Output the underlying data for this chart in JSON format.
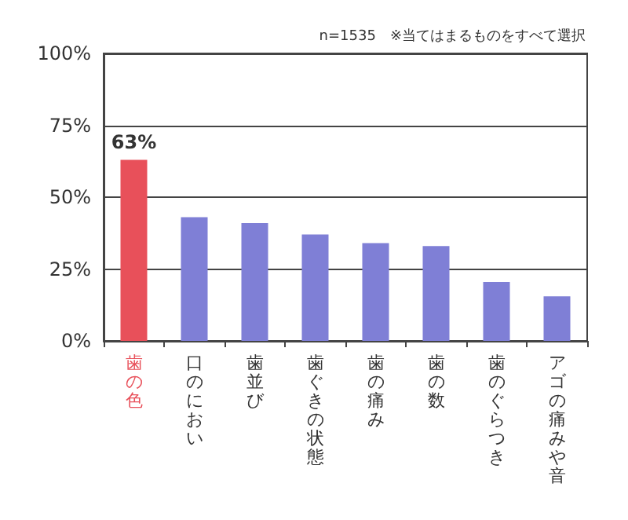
{
  "chart_data": {
    "type": "bar",
    "subtitle": "n=1535　※当てはまるものをすべて選択",
    "categories": [
      "歯の色",
      "口のにおい",
      "歯並び",
      "歯ぐきの状態",
      "歯の痛み",
      "歯の数",
      "歯のぐらつき",
      "アゴの痛みや音"
    ],
    "values": [
      63,
      43,
      41,
      37,
      34,
      33,
      20.5,
      15.5
    ],
    "value_labels": [
      "63%",
      null,
      null,
      null,
      null,
      null,
      null,
      null
    ],
    "colors": [
      "#e8505a",
      "#7f7fd6",
      "#7f7fd6",
      "#7f7fd6",
      "#7f7fd6",
      "#7f7fd6",
      "#7f7fd6",
      "#7f7fd6"
    ],
    "ylim": [
      0,
      100
    ],
    "yticks": [
      {
        "value": 0,
        "label": "0%"
      },
      {
        "value": 25,
        "label": "25%"
      },
      {
        "value": 50,
        "label": "50%"
      },
      {
        "value": 75,
        "label": "75%"
      },
      {
        "value": 100,
        "label": "100%"
      }
    ],
    "grid": "y"
  }
}
